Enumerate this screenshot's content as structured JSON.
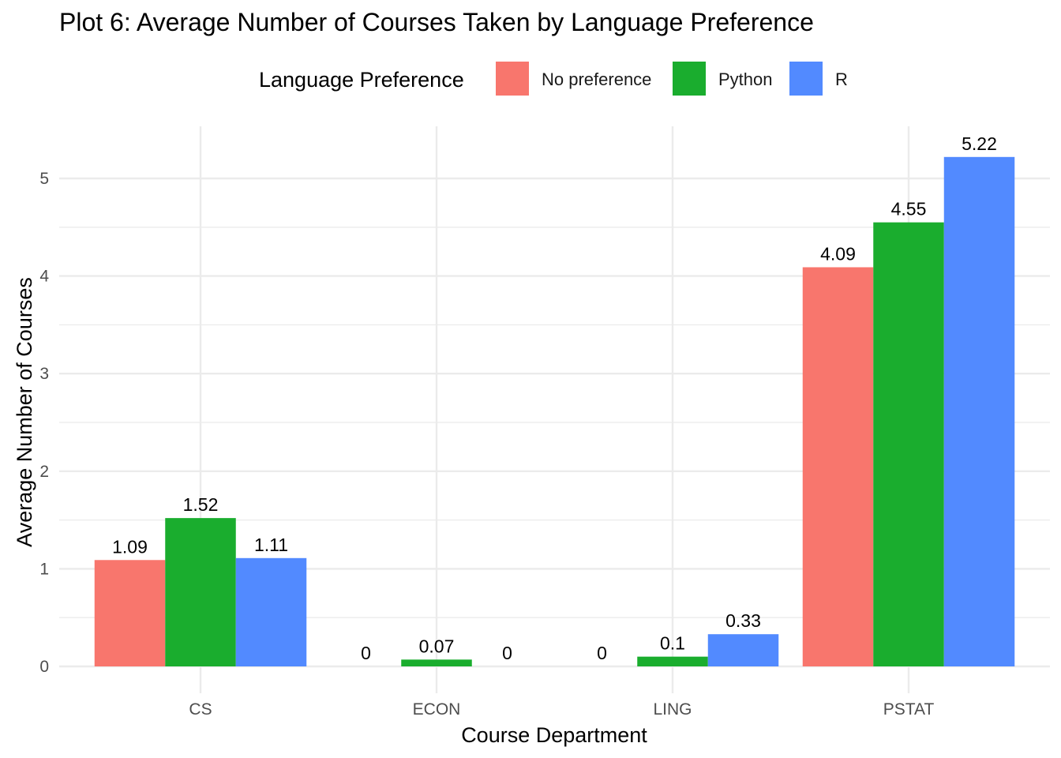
{
  "chart_data": {
    "type": "bar",
    "title": "Plot 6: Average Number of Courses Taken by Language Preference",
    "xlabel": "Course Department",
    "ylabel": "Average Number of Courses",
    "categories": [
      "CS",
      "ECON",
      "LING",
      "PSTAT"
    ],
    "legend_title": "Language Preference",
    "legend_position": "top",
    "ylim": [
      0,
      5.45
    ],
    "yticks": [
      0,
      1,
      2,
      3,
      4,
      5
    ],
    "grid": true,
    "series": [
      {
        "name": "No preference",
        "color": "#F8766D",
        "values": [
          1.09,
          0,
          0,
          4.09
        ],
        "labels": [
          "1.09",
          "0",
          "0",
          "4.09"
        ]
      },
      {
        "name": "Python",
        "color": "#1AAD2E",
        "values": [
          1.52,
          0.07,
          0.1,
          4.55
        ],
        "labels": [
          "1.52",
          "0.07",
          "0.1",
          "4.55"
        ]
      },
      {
        "name": "R",
        "color": "#528AFF",
        "values": [
          1.11,
          0,
          0.33,
          5.22
        ],
        "labels": [
          "1.11",
          "0",
          "0.33",
          "5.22"
        ]
      }
    ]
  }
}
